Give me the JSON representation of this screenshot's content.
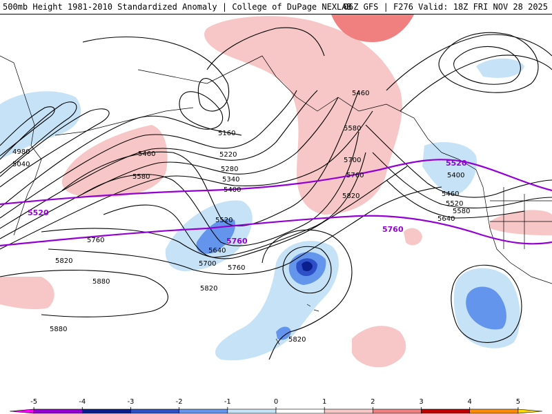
{
  "header": {
    "left": "500mb Height 1981-2010 Standardized Anomaly | College of DuPage NEXLAB",
    "right": "06Z GFS | F276 Valid: 18Z FRI NOV 28 2025"
  },
  "colors": {
    "contour": "#000000",
    "highlight_contour": "#9400d3",
    "coast": "#000000",
    "anom_pos1": "#f7c6c6",
    "anom_pos2": "#f08080",
    "anom_neg1": "#c6e2f7",
    "anom_neg2": "#6495ed",
    "anom_neg3": "#2d50c8",
    "anom_neg4": "#0a1e8c"
  },
  "contour_labels": [
    {
      "text": "5460",
      "name": "label-5460-north"
    },
    {
      "text": "5580",
      "name": "label-5580-center"
    },
    {
      "text": "5700",
      "name": "label-5700-center"
    },
    {
      "text": "5760",
      "name": "label-5760-center"
    },
    {
      "text": "5820",
      "name": "label-5820-center"
    },
    {
      "text": "5160",
      "name": "label-5160"
    },
    {
      "text": "5220",
      "name": "label-5220"
    },
    {
      "text": "5280",
      "name": "label-5280"
    },
    {
      "text": "5340",
      "name": "label-5340"
    },
    {
      "text": "5400",
      "name": "label-5400-west"
    },
    {
      "text": "5460",
      "name": "label-5460-west"
    },
    {
      "text": "5580",
      "name": "label-5580-west"
    },
    {
      "text": "4980",
      "name": "label-4980"
    },
    {
      "text": "5040",
      "name": "label-5040"
    },
    {
      "text": "5760",
      "name": "label-5760-west"
    },
    {
      "text": "5820",
      "name": "label-5820-west"
    },
    {
      "text": "5880",
      "name": "label-5880-west"
    },
    {
      "text": "5880",
      "name": "label-5880-southwest"
    },
    {
      "text": "5520",
      "name": "label-5520-trough"
    },
    {
      "text": "5640",
      "name": "label-5640-trough"
    },
    {
      "text": "5700",
      "name": "label-5700-trough"
    },
    {
      "text": "5760",
      "name": "label-5760-trough"
    },
    {
      "text": "5820",
      "name": "label-5820-trough"
    },
    {
      "text": "5820",
      "name": "label-5820-hawaii"
    },
    {
      "text": "5400",
      "name": "label-5400-east"
    },
    {
      "text": "5460",
      "name": "label-5460-east"
    },
    {
      "text": "5520",
      "name": "label-5520-east"
    },
    {
      "text": "5580",
      "name": "label-5580-east"
    },
    {
      "text": "5640",
      "name": "label-5640-east"
    }
  ],
  "highlight_labels": [
    {
      "text": "5520",
      "name": "label-5520-purple-west"
    },
    {
      "text": "5520",
      "name": "label-5520-purple-east"
    },
    {
      "text": "5760",
      "name": "label-5760-purple-center"
    },
    {
      "text": "5760",
      "name": "label-5760-purple-east"
    }
  ],
  "colorbar": {
    "ticks": [
      "-5",
      "-4",
      "-3",
      "-2",
      "-1",
      "0",
      "1",
      "2",
      "3",
      "4",
      "5"
    ],
    "range": [
      -5.5,
      5.5
    ],
    "segments": [
      {
        "from": -5.5,
        "to": -5,
        "color": "#ff00ff"
      },
      {
        "from": -5,
        "to": -4,
        "color": "#9400d3"
      },
      {
        "from": -4,
        "to": -3,
        "color": "#0a1e8c"
      },
      {
        "from": -3,
        "to": -2,
        "color": "#2d50c8"
      },
      {
        "from": -2,
        "to": -1,
        "color": "#6495ed"
      },
      {
        "from": -1,
        "to": 0,
        "color": "#c6e2f7"
      },
      {
        "from": 0,
        "to": 1,
        "color": "#ffffff"
      },
      {
        "from": 1,
        "to": 2,
        "color": "#f7c6c6"
      },
      {
        "from": 2,
        "to": 3,
        "color": "#f08080"
      },
      {
        "from": 3,
        "to": 4,
        "color": "#c00000"
      },
      {
        "from": 4,
        "to": 5,
        "color": "#ff8c00"
      },
      {
        "from": 5,
        "to": 5.5,
        "color": "#ffd700"
      }
    ]
  }
}
